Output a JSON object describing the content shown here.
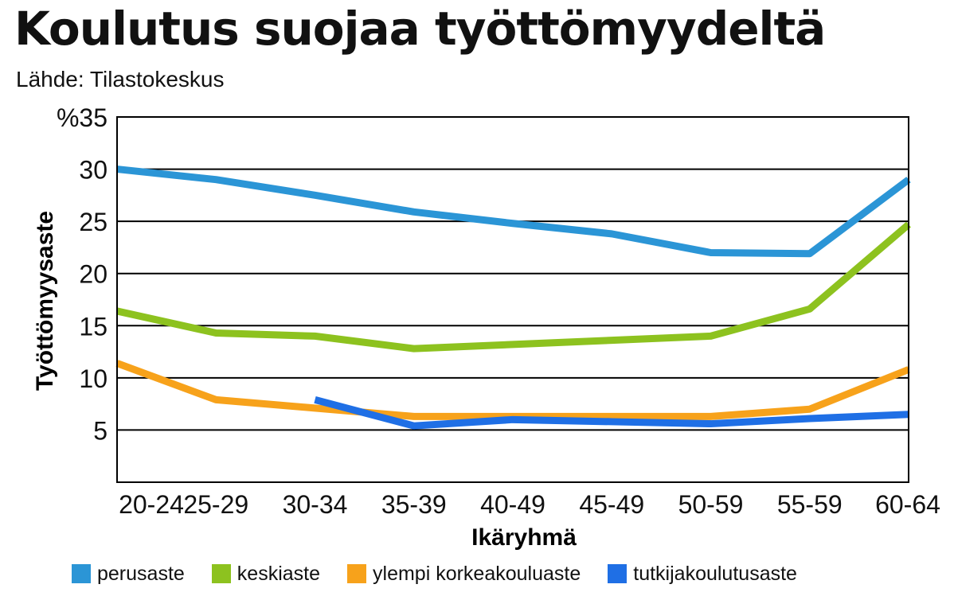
{
  "header": {
    "title": "Koulutus suojaa työttömyydeltä",
    "source": "Lähde: Tilastokeskus"
  },
  "chart_data": {
    "type": "line",
    "title": "Koulutus suojaa työttömyydeltä",
    "subtitle": "Lähde: Tilastokeskus",
    "xlabel": "Ikäryhmä",
    "ylabel": "Työttömyysaste",
    "yunit": "%",
    "ylim": [
      0,
      35
    ],
    "yticks": [
      5,
      10,
      15,
      20,
      25,
      30,
      35
    ],
    "ytick_labels": [
      "5",
      "10",
      "15",
      "20",
      "25",
      "30",
      "%35"
    ],
    "grid": "horizontal",
    "legend_position": "bottom",
    "categories": [
      "20-24",
      "25-29",
      "30-34",
      "35-39",
      "40-49",
      "45-49",
      "50-59",
      "55-59",
      "60-64"
    ],
    "series": [
      {
        "name": "perusaste",
        "color": "#2b95d6",
        "values": [
          30.0,
          29.0,
          27.5,
          25.9,
          24.8,
          23.8,
          22.0,
          21.9,
          29.0
        ]
      },
      {
        "name": "keskiaste",
        "color": "#8dc21f",
        "values": [
          16.4,
          14.3,
          14.0,
          12.8,
          13.2,
          13.6,
          14.0,
          16.6,
          24.7
        ]
      },
      {
        "name": "ylempi korkeakouluaste",
        "color": "#f7a21b",
        "values": [
          11.4,
          7.9,
          7.1,
          6.3,
          6.3,
          6.3,
          6.3,
          7.0,
          10.8
        ]
      },
      {
        "name": "tutkijakoulutusaste",
        "color": "#1f6fe5",
        "values": [
          null,
          null,
          7.9,
          5.4,
          6.0,
          5.8,
          5.6,
          6.1,
          6.5
        ]
      }
    ]
  }
}
